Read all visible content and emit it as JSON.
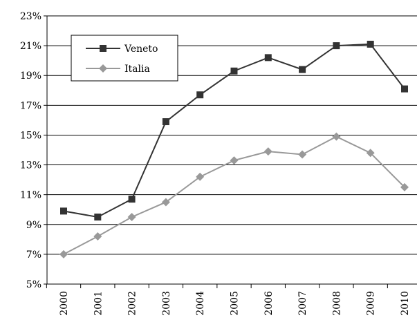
{
  "chart_data": {
    "type": "line",
    "title": "",
    "xlabel": "",
    "ylabel": "",
    "categories": [
      "2000",
      "2001",
      "2002",
      "2003",
      "2004",
      "2005",
      "2006",
      "2007",
      "2008",
      "2009",
      "2010"
    ],
    "ylim": [
      5,
      23
    ],
    "yticks": [
      5,
      7,
      9,
      11,
      13,
      15,
      17,
      19,
      21,
      23
    ],
    "ytick_labels": [
      "5%",
      "7%",
      "9%",
      "11%",
      "13%",
      "15%",
      "17%",
      "19%",
      "21%",
      "23%"
    ],
    "grid": "horizontal",
    "legend_position": "top-left",
    "series": [
      {
        "name": "Veneto",
        "color": "#333333",
        "marker": "square",
        "values": [
          9.9,
          9.5,
          10.7,
          15.9,
          17.7,
          19.3,
          20.2,
          19.4,
          21.0,
          21.1,
          18.1
        ]
      },
      {
        "name": "Italia",
        "color": "#999999",
        "marker": "diamond",
        "values": [
          7.0,
          8.2,
          9.5,
          10.5,
          12.2,
          13.3,
          13.9,
          13.7,
          14.9,
          13.8,
          11.5
        ]
      }
    ]
  }
}
